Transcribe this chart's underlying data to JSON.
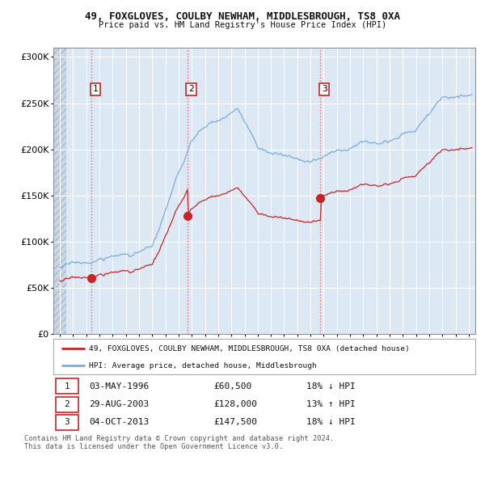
{
  "title1": "49, FOXGLOVES, COULBY NEWHAM, MIDDLESBROUGH, TS8 0XA",
  "title2": "Price paid vs. HM Land Registry's House Price Index (HPI)",
  "legend_label1": "49, FOXGLOVES, COULBY NEWHAM, MIDDLESBROUGH, TS8 0XA (detached house)",
  "legend_label2": "HPI: Average price, detached house, Middlesbrough",
  "sale1": {
    "date_num": 1996.37,
    "price": 60500,
    "label": "1",
    "date_str": "03-MAY-1996",
    "pct": "18% ↓ HPI"
  },
  "sale2": {
    "date_num": 2003.66,
    "price": 128000,
    "label": "2",
    "date_str": "29-AUG-2003",
    "pct": "13% ↑ HPI"
  },
  "sale3": {
    "date_num": 2013.75,
    "price": 147500,
    "label": "3",
    "date_str": "04-OCT-2013",
    "pct": "18% ↓ HPI"
  },
  "hpi_color": "#7aabdc",
  "price_color": "#cc2222",
  "dot_color": "#cc2222",
  "vline_color": "#ee6666",
  "bg_color": "#dce9f5",
  "grid_color": "#ffffff",
  "yticks": [
    0,
    50000,
    100000,
    150000,
    200000,
    250000,
    300000
  ],
  "ylim": [
    0,
    310000
  ],
  "xlim_start": 1993.5,
  "xlim_end": 2025.5,
  "footer": "Contains HM Land Registry data © Crown copyright and database right 2024.\nThis data is licensed under the Open Government Licence v3.0.",
  "sale_prices_str": [
    "£60,500",
    "£128,000",
    "£147,500"
  ]
}
